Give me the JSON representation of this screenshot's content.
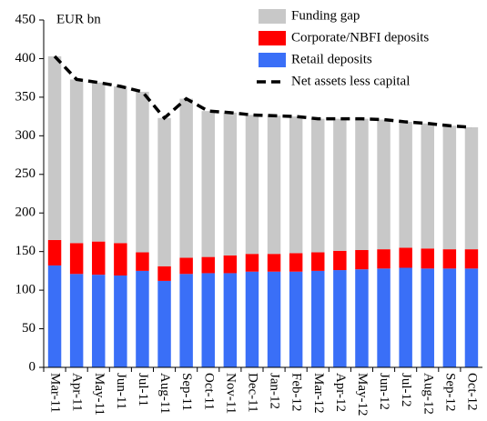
{
  "chart_data": {
    "type": "bar",
    "stacked": true,
    "y_label": "EUR bn",
    "categories": [
      "Mar-11",
      "Apr-11",
      "May-11",
      "Jun-11",
      "Jul-11",
      "Aug-11",
      "Sep-11",
      "Oct-11",
      "Nov-11",
      "Dec-11",
      "Jan-12",
      "Feb-12",
      "Mar-12",
      "Apr-12",
      "May-12",
      "Jun-12",
      "Jul-12",
      "Aug-12",
      "Sep-12",
      "Oct-12"
    ],
    "series": [
      {
        "name": "Retail deposits",
        "color": "#3a6ff7",
        "values": [
          132,
          121,
          120,
          119,
          125,
          112,
          121,
          122,
          122,
          124,
          124,
          124,
          125,
          126,
          127,
          128,
          129,
          128,
          128,
          128
        ]
      },
      {
        "name": "Corporate/NBFI deposits",
        "color": "#ff0000",
        "values": [
          33,
          40,
          43,
          42,
          24,
          19,
          21,
          21,
          23,
          23,
          23,
          24,
          24,
          25,
          25,
          25,
          26,
          26,
          25,
          25
        ]
      },
      {
        "name": "Funding gap",
        "color": "#c8c8c8",
        "values": [
          238,
          212,
          206,
          203,
          208,
          192,
          206,
          189,
          185,
          180,
          179,
          177,
          173,
          171,
          170,
          168,
          163,
          162,
          160,
          158
        ]
      },
      {
        "name": "Net assets less capital",
        "type": "line",
        "color": "#000000",
        "values": [
          403,
          373,
          369,
          364,
          357,
          323,
          348,
          332,
          330,
          327,
          326,
          325,
          322,
          322,
          322,
          321,
          318,
          316,
          313,
          311
        ]
      }
    ],
    "legend_order": [
      2,
      1,
      0,
      3
    ],
    "ylim": [
      0,
      450
    ],
    "yticks": [
      0,
      50,
      100,
      150,
      200,
      250,
      300,
      350,
      400,
      450
    ]
  }
}
